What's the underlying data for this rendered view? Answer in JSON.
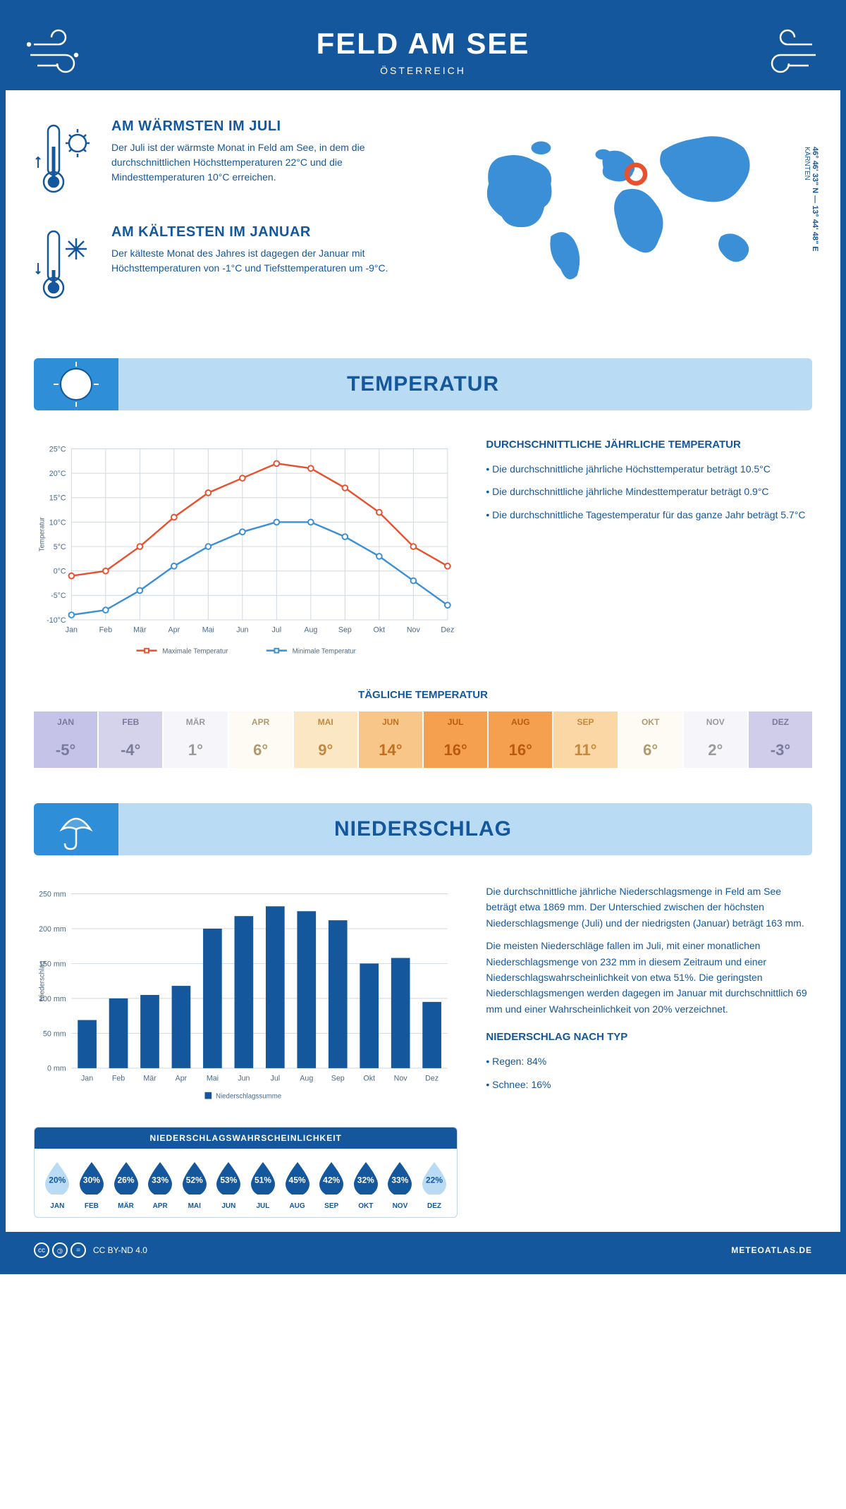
{
  "header": {
    "title": "FELD AM SEE",
    "subtitle": "ÖSTERREICH"
  },
  "coords": {
    "lat": "46° 46' 33\" N",
    "lon": "13° 44' 48\" E",
    "region": "KÄRNTEN"
  },
  "warmest": {
    "title": "AM WÄRMSTEN IM JULI",
    "text": "Der Juli ist der wärmste Monat in Feld am See, in dem die durchschnittlichen Höchsttemperaturen 22°C und die Mindesttemperaturen 10°C erreichen."
  },
  "coldest": {
    "title": "AM KÄLTESTEN IM JANUAR",
    "text": "Der kälteste Monat des Jahres ist dagegen der Januar mit Höchsttemperaturen von -1°C und Tiefsttemperaturen um -9°C."
  },
  "temp_section": {
    "title": "TEMPERATUR",
    "annual_title": "DURCHSCHNITTLICHE JÄHRLICHE TEMPERATUR",
    "bullet1": "• Die durchschnittliche jährliche Höchsttemperatur beträgt 10.5°C",
    "bullet2": "• Die durchschnittliche jährliche Mindesttemperatur beträgt 0.9°C",
    "bullet3": "• Die durchschnittliche Tagestemperatur für das ganze Jahr beträgt 5.7°C",
    "daily_title": "TÄGLICHE TEMPERATUR"
  },
  "temp_chart": {
    "months": [
      "Jan",
      "Feb",
      "Mär",
      "Apr",
      "Mai",
      "Jun",
      "Jul",
      "Aug",
      "Sep",
      "Okt",
      "Nov",
      "Dez"
    ],
    "max": [
      -1,
      0,
      5,
      11,
      16,
      19,
      22,
      21,
      17,
      12,
      5,
      1
    ],
    "min": [
      -9,
      -8,
      -4,
      1,
      5,
      8,
      10,
      10,
      7,
      3,
      -2,
      -7
    ],
    "ymin": -10,
    "ymax": 25,
    "ystep": 5,
    "max_color": "#e8512f",
    "min_color": "#3b8fd6",
    "grid_color": "#d0d8e0",
    "axis_color": "#4a6a8a",
    "legend_max": "Maximale Temperatur",
    "legend_min": "Minimale Temperatur",
    "ylabel": "Temperatur"
  },
  "daily_temp": {
    "months": [
      "JAN",
      "FEB",
      "MÄR",
      "APR",
      "MAI",
      "JUN",
      "JUL",
      "AUG",
      "SEP",
      "OKT",
      "NOV",
      "DEZ"
    ],
    "values": [
      "-5°",
      "-4°",
      "1°",
      "6°",
      "9°",
      "14°",
      "16°",
      "16°",
      "11°",
      "6°",
      "2°",
      "-3°"
    ],
    "bg_colors": [
      "#c5c3e8",
      "#d5d3ec",
      "#f6f5fa",
      "#fdfbf3",
      "#fce7c4",
      "#f9c68a",
      "#f5a04e",
      "#f5a04e",
      "#fbd7a5",
      "#fdfbf3",
      "#f6f5fa",
      "#cfcdea"
    ],
    "text_colors": [
      "#7a7a9a",
      "#7a7a9a",
      "#9a9a9a",
      "#b09a70",
      "#c28a40",
      "#c07020",
      "#b85a10",
      "#b85a10",
      "#c28a40",
      "#b09a70",
      "#9a9a9a",
      "#7a7a9a"
    ]
  },
  "precip_section": {
    "title": "NIEDERSCHLAG",
    "para1": "Die durchschnittliche jährliche Niederschlagsmenge in Feld am See beträgt etwa 1869 mm. Der Unterschied zwischen der höchsten Niederschlagsmenge (Juli) und der niedrigsten (Januar) beträgt 163 mm.",
    "para2": "Die meisten Niederschläge fallen im Juli, mit einer monatlichen Niederschlagsmenge von 232 mm in diesem Zeitraum und einer Niederschlagswahrscheinlichkeit von etwa 51%. Die geringsten Niederschlagsmengen werden dagegen im Januar mit durchschnittlich 69 mm und einer Wahrscheinlichkeit von 20% verzeichnet.",
    "type_title": "NIEDERSCHLAG NACH TYP",
    "type1": "• Regen: 84%",
    "type2": "• Schnee: 16%"
  },
  "precip_chart": {
    "months": [
      "Jan",
      "Feb",
      "Mär",
      "Apr",
      "Mai",
      "Jun",
      "Jul",
      "Aug",
      "Sep",
      "Okt",
      "Nov",
      "Dez"
    ],
    "values": [
      69,
      100,
      105,
      118,
      200,
      218,
      232,
      225,
      212,
      150,
      158,
      95
    ],
    "ymax": 250,
    "ystep": 50,
    "bar_color": "#14579c",
    "grid_color": "#d0d8e0",
    "legend": "Niederschlagssumme",
    "ylabel": "Niederschlag"
  },
  "precip_prob": {
    "title": "NIEDERSCHLAGSWAHRSCHEINLICHKEIT",
    "months": [
      "JAN",
      "FEB",
      "MÄR",
      "APR",
      "MAI",
      "JUN",
      "JUL",
      "AUG",
      "SEP",
      "OKT",
      "NOV",
      "DEZ"
    ],
    "pcts": [
      "20%",
      "30%",
      "26%",
      "33%",
      "52%",
      "53%",
      "51%",
      "45%",
      "42%",
      "32%",
      "33%",
      "22%"
    ],
    "colors": [
      "#b9dcf4",
      "#14579c",
      "#14579c",
      "#14579c",
      "#14579c",
      "#14579c",
      "#14579c",
      "#14579c",
      "#14579c",
      "#14579c",
      "#14579c",
      "#b9dcf4"
    ],
    "light": [
      true,
      false,
      false,
      false,
      false,
      false,
      false,
      false,
      false,
      false,
      false,
      true
    ]
  },
  "footer": {
    "license": "CC BY-ND 4.0",
    "site": "METEOATLAS.DE"
  }
}
